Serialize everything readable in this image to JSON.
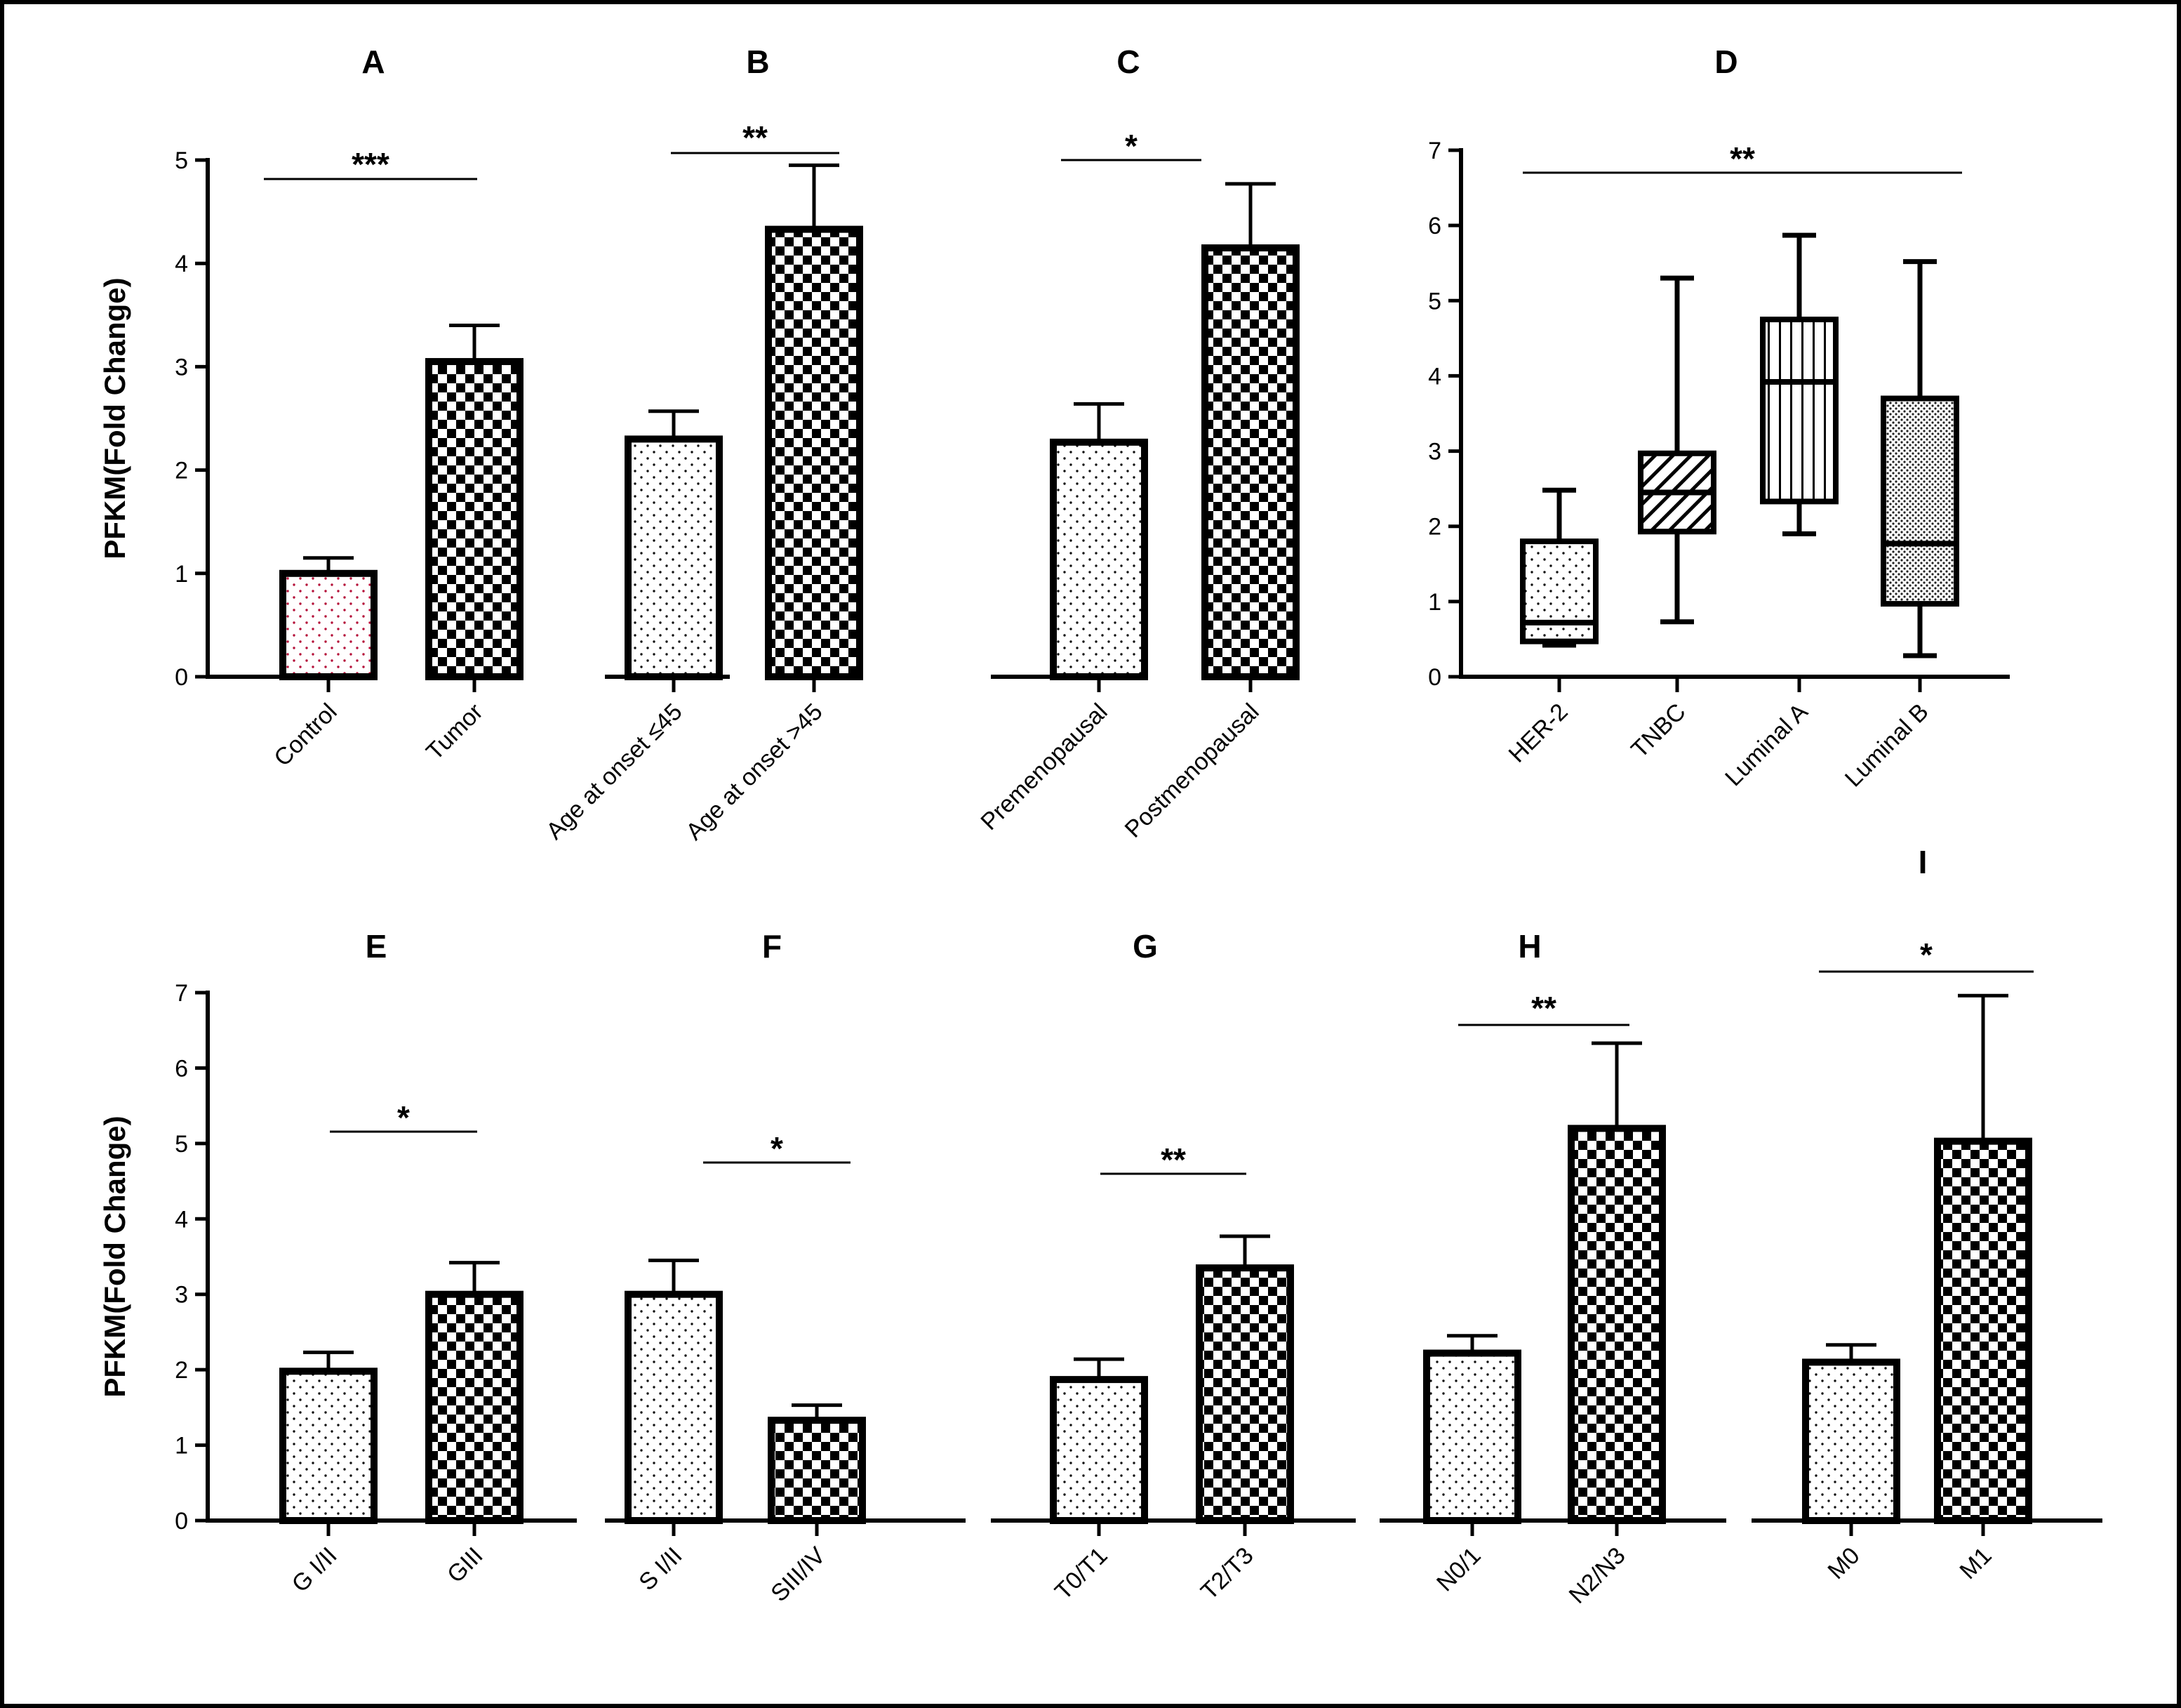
{
  "y_axis_label": "PFKM(Fold Change)",
  "chart_data": [
    {
      "id": "A",
      "type": "bar",
      "panel_label": "A",
      "categories": [
        "Control",
        "Tumor"
      ],
      "values": [
        1.0,
        3.05
      ],
      "errors": [
        0.15,
        0.35
      ],
      "patterns": [
        "dots-red",
        "checker"
      ],
      "ylim": [
        0,
        5
      ],
      "yticks": [
        0,
        1,
        2,
        3,
        4,
        5
      ],
      "ylabel": "PFKM(Fold Change)",
      "significance": "***"
    },
    {
      "id": "B",
      "type": "bar",
      "panel_label": "B",
      "categories": [
        "Age at onset ≤45",
        "Age at onset >45"
      ],
      "values": [
        2.3,
        4.33
      ],
      "errors": [
        0.27,
        0.62
      ],
      "patterns": [
        "dots",
        "checker"
      ],
      "ylim": [
        0,
        5
      ],
      "significance": "**"
    },
    {
      "id": "C",
      "type": "bar",
      "panel_label": "C",
      "categories": [
        "Premenopausal",
        "Postmenopausal"
      ],
      "values": [
        2.27,
        4.15
      ],
      "errors": [
        0.37,
        0.62
      ],
      "patterns": [
        "dots",
        "checker"
      ],
      "ylim": [
        0,
        5
      ],
      "significance": "*"
    },
    {
      "id": "D",
      "type": "box",
      "panel_label": "D",
      "categories": [
        "HER-2",
        "TNBC",
        "Luminal A",
        "Luminal B"
      ],
      "boxes": [
        {
          "min": 0.42,
          "q1": 0.47,
          "median": 0.72,
          "q3": 1.8,
          "max": 2.48,
          "pattern": "dots"
        },
        {
          "min": 0.73,
          "q1": 1.93,
          "median": 2.45,
          "q3": 2.97,
          "max": 5.3,
          "pattern": "hatch"
        },
        {
          "min": 1.9,
          "q1": 2.33,
          "median": 3.92,
          "q3": 4.75,
          "max": 5.87,
          "pattern": "vlines"
        },
        {
          "min": 0.28,
          "q1": 0.97,
          "median": 1.77,
          "q3": 3.7,
          "max": 5.52,
          "pattern": "dense-dots"
        }
      ],
      "ylim": [
        0,
        7
      ],
      "yticks": [
        0,
        1,
        2,
        3,
        4,
        5,
        6,
        7
      ],
      "significance": "**"
    },
    {
      "id": "E",
      "type": "bar",
      "panel_label": "E",
      "categories": [
        "G I/II",
        "GIII"
      ],
      "values": [
        1.98,
        3.0
      ],
      "errors": [
        0.25,
        0.42
      ],
      "patterns": [
        "dots",
        "checker"
      ],
      "ylim": [
        0,
        7
      ],
      "yticks": [
        0,
        1,
        2,
        3,
        4,
        5,
        6,
        7
      ],
      "ylabel": "PFKM(Fold Change)",
      "significance": "*"
    },
    {
      "id": "F",
      "type": "bar",
      "panel_label": "F",
      "categories": [
        "S I/II",
        "SIII/IV"
      ],
      "values": [
        3.0,
        1.33
      ],
      "errors": [
        0.45,
        0.2
      ],
      "patterns": [
        "dots",
        "checker"
      ],
      "ylim": [
        0,
        7
      ],
      "significance": "*"
    },
    {
      "id": "G",
      "type": "bar",
      "panel_label": "G",
      "categories": [
        "T0/T1",
        "T2/T3"
      ],
      "values": [
        1.87,
        3.35
      ],
      "errors": [
        0.27,
        0.42
      ],
      "patterns": [
        "dots",
        "checker"
      ],
      "ylim": [
        0,
        7
      ],
      "significance": "**"
    },
    {
      "id": "H",
      "type": "bar",
      "panel_label": "H",
      "categories": [
        "N0/1",
        "N2/N3"
      ],
      "values": [
        2.22,
        5.2
      ],
      "errors": [
        0.23,
        1.13
      ],
      "patterns": [
        "dots",
        "checker"
      ],
      "ylim": [
        0,
        7
      ],
      "significance": "**"
    },
    {
      "id": "I",
      "type": "bar",
      "panel_label": "I",
      "categories": [
        "M0",
        "M1"
      ],
      "values": [
        2.1,
        5.03
      ],
      "errors": [
        0.23,
        1.93
      ],
      "patterns": [
        "dots",
        "checker"
      ],
      "ylim": [
        0,
        7
      ],
      "significance": "*"
    }
  ]
}
